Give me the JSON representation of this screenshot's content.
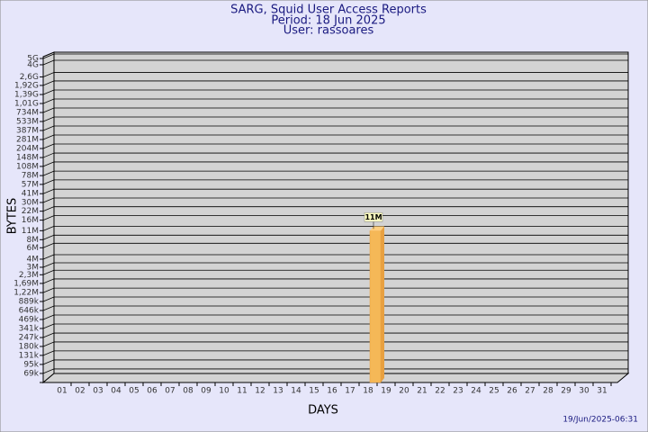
{
  "chart_data": {
    "type": "bar",
    "title": "SARG, Squid User Access Reports",
    "subtitles": [
      "Period: 18 Jun 2025",
      "User: rassoares"
    ],
    "x_label": "DAYS",
    "y_label": "BYTES",
    "footer": "19/Jun/2025-06:31",
    "log_scale": true,
    "grid": true,
    "color": "#f5b857",
    "categories": [
      "01",
      "02",
      "03",
      "04",
      "05",
      "06",
      "07",
      "08",
      "09",
      "10",
      "11",
      "12",
      "13",
      "14",
      "15",
      "16",
      "17",
      "18",
      "19",
      "20",
      "21",
      "22",
      "23",
      "24",
      "25",
      "26",
      "27",
      "28",
      "29",
      "30",
      "31"
    ],
    "values": [
      null,
      null,
      null,
      null,
      null,
      null,
      null,
      null,
      null,
      null,
      null,
      null,
      null,
      null,
      null,
      null,
      null,
      11000000,
      null,
      null,
      null,
      null,
      null,
      null,
      null,
      null,
      null,
      null,
      null,
      null,
      null
    ],
    "value_labels": [
      null,
      null,
      null,
      null,
      null,
      null,
      null,
      null,
      null,
      null,
      null,
      null,
      null,
      null,
      null,
      null,
      null,
      "11M",
      null,
      null,
      null,
      null,
      null,
      null,
      null,
      null,
      null,
      null,
      null,
      null,
      null
    ],
    "ylim": [
      50000,
      5000000000
    ],
    "yticks": [
      {
        "value": 69000,
        "label": "69k"
      },
      {
        "value": 95000,
        "label": "95k"
      },
      {
        "value": 131000,
        "label": "131k"
      },
      {
        "value": 180000,
        "label": "180k"
      },
      {
        "value": 247000,
        "label": "247k"
      },
      {
        "value": 341000,
        "label": "341k"
      },
      {
        "value": 469000,
        "label": "469k"
      },
      {
        "value": 646000,
        "label": "646k"
      },
      {
        "value": 889000,
        "label": "889k"
      },
      {
        "value": 1220000,
        "label": "1,22M"
      },
      {
        "value": 1690000,
        "label": "1,69M"
      },
      {
        "value": 2300000,
        "label": "2,3M"
      },
      {
        "value": 3000000,
        "label": "3M"
      },
      {
        "value": 4000000,
        "label": "4M"
      },
      {
        "value": 6000000,
        "label": "6M"
      },
      {
        "value": 8000000,
        "label": "8M"
      },
      {
        "value": 11000000,
        "label": "11M"
      },
      {
        "value": 16000000,
        "label": "16M"
      },
      {
        "value": 22000000,
        "label": "22M"
      },
      {
        "value": 30000000,
        "label": "30M"
      },
      {
        "value": 41000000,
        "label": "41M"
      },
      {
        "value": 57000000,
        "label": "57M"
      },
      {
        "value": 78000000,
        "label": "78M"
      },
      {
        "value": 108000000,
        "label": "108M"
      },
      {
        "value": 148000000,
        "label": "148M"
      },
      {
        "value": 204000000,
        "label": "204M"
      },
      {
        "value": 281000000,
        "label": "281M"
      },
      {
        "value": 387000000,
        "label": "387M"
      },
      {
        "value": 533000000,
        "label": "533M"
      },
      {
        "value": 734000000,
        "label": "734M"
      },
      {
        "value": 1010000000,
        "label": "1,01G"
      },
      {
        "value": 1390000000,
        "label": "1,39G"
      },
      {
        "value": 1920000000,
        "label": "1,92G"
      },
      {
        "value": 2600000000,
        "label": "2,6G"
      },
      {
        "value": 4000000000,
        "label": "4G"
      },
      {
        "value": 5000000000,
        "label": "5G"
      }
    ]
  }
}
